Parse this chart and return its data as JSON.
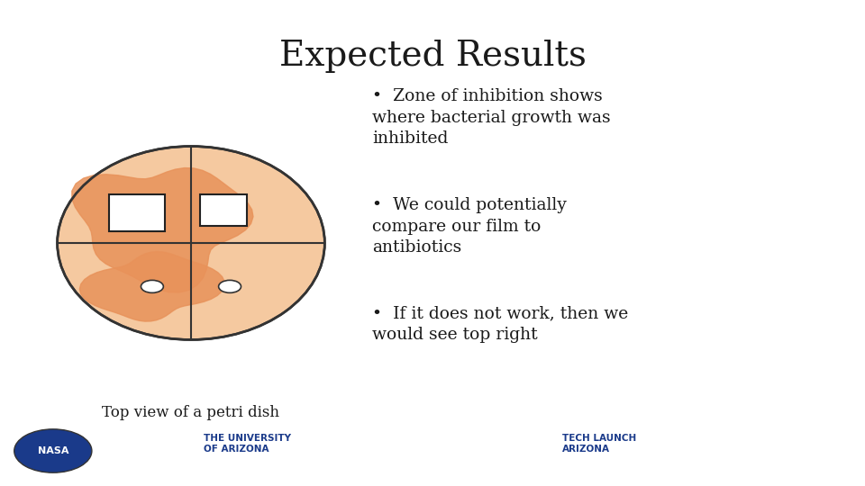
{
  "title": "Expected Results",
  "title_fontsize": 28,
  "title_font": "DejaVu Serif",
  "background_color": "#ffffff",
  "bullet_points": [
    "Zone of inhibition shows\nwhere bacterial growth was\ninhibited",
    "We could potentially\ncompare our film to\nantibiotics",
    "If it does not work, then we\nwould see top right"
  ],
  "caption": "Top view of a petri dish",
  "petri_color_light": "#f5c9a0",
  "petri_color_dark": "#e8925a",
  "petri_outline": "#333333",
  "inhibition_zone_color": "#e8925a",
  "quadrant_line_color": "#333333",
  "text_color": "#1a1a1a",
  "bullet_fontsize": 13.5,
  "caption_fontsize": 12
}
